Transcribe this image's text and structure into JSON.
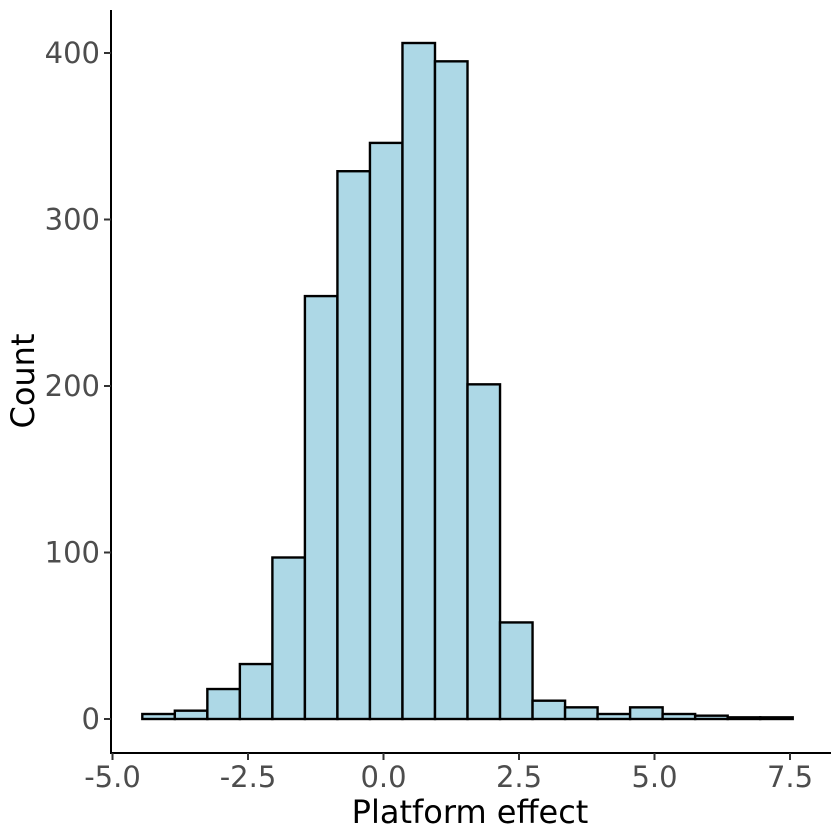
{
  "chart_data": {
    "type": "bar",
    "subtype": "histogram",
    "xlabel": "Platform effect",
    "ylabel": "Count",
    "xlim": [
      -5.0,
      7.5
    ],
    "ylim": [
      0,
      400
    ],
    "x_ticks": [
      "-5.0",
      "-2.5",
      "0.0",
      "2.5",
      "5.0",
      "7.5"
    ],
    "y_ticks": [
      "0",
      "100",
      "200",
      "300",
      "400"
    ],
    "bin_width": 0.6,
    "bins": [
      {
        "x0": -4.45,
        "x1": -3.85,
        "count": 3
      },
      {
        "x0": -3.85,
        "x1": -3.25,
        "count": 5
      },
      {
        "x0": -3.25,
        "x1": -2.65,
        "count": 18
      },
      {
        "x0": -2.65,
        "x1": -2.05,
        "count": 33
      },
      {
        "x0": -2.05,
        "x1": -1.45,
        "count": 97
      },
      {
        "x0": -1.45,
        "x1": -0.85,
        "count": 254
      },
      {
        "x0": -0.85,
        "x1": -0.25,
        "count": 329
      },
      {
        "x0": -0.25,
        "x1": 0.35,
        "count": 346
      },
      {
        "x0": 0.35,
        "x1": 0.95,
        "count": 406
      },
      {
        "x0": 0.95,
        "x1": 1.55,
        "count": 395
      },
      {
        "x0": 1.55,
        "x1": 2.15,
        "count": 201
      },
      {
        "x0": 2.15,
        "x1": 2.75,
        "count": 58
      },
      {
        "x0": 2.75,
        "x1": 3.35,
        "count": 11
      },
      {
        "x0": 3.35,
        "x1": 3.95,
        "count": 7
      },
      {
        "x0": 3.95,
        "x1": 4.55,
        "count": 3
      },
      {
        "x0": 4.55,
        "x1": 5.15,
        "count": 7
      },
      {
        "x0": 5.15,
        "x1": 5.75,
        "count": 3
      },
      {
        "x0": 5.75,
        "x1": 6.35,
        "count": 2
      },
      {
        "x0": 6.35,
        "x1": 6.95,
        "count": 1
      },
      {
        "x0": 6.95,
        "x1": 7.55,
        "count": 1
      }
    ],
    "fill_color": "#add8e6",
    "outline_color": "#000000",
    "grid": false,
    "legend": "none"
  }
}
